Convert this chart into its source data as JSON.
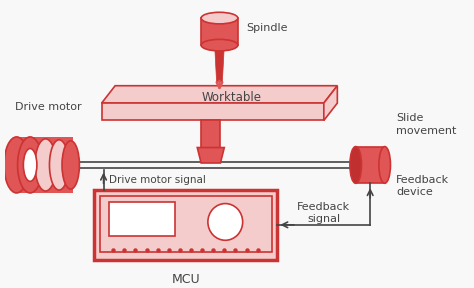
{
  "background_color": "#f8f8f8",
  "red_fill": "#e05555",
  "red_light": "#f2b8b8",
  "red_dark": "#c03030",
  "red_border": "#cc3333",
  "pink_fill": "#f5cccc",
  "line_color": "#444444",
  "text_color": "#444444",
  "figsize": [
    4.74,
    2.88
  ],
  "dpi": 100,
  "labels": {
    "spindle": "Spindle",
    "worktable": "Worktable",
    "drive_motor": "Drive motor",
    "slide_movement": "Slide\nmovement",
    "drive_motor_signal": "Drive motor signal",
    "feedback_signal": "Feedback\nsignal",
    "feedback_device": "Feedback\ndevice",
    "mcu": "MCU"
  }
}
